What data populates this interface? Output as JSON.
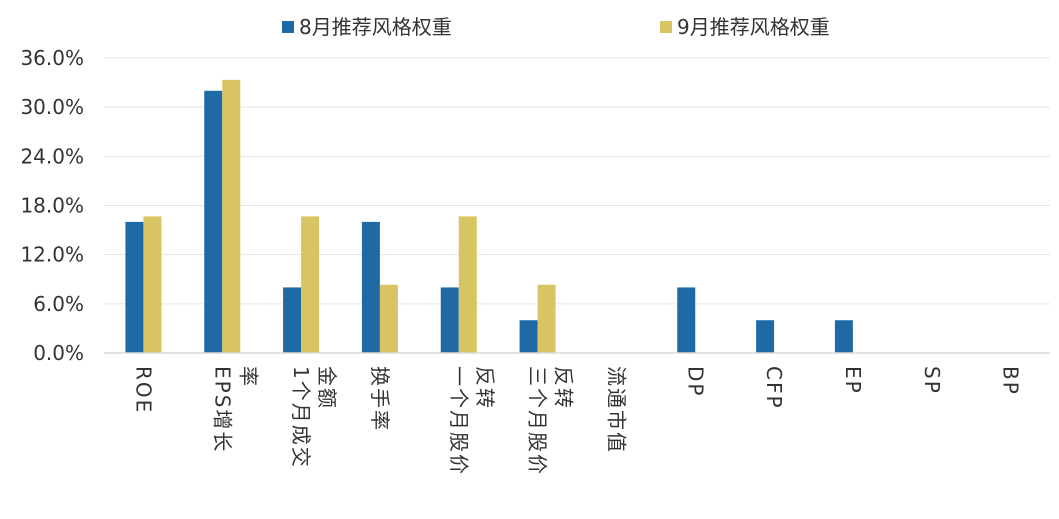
{
  "chart_data": {
    "type": "bar",
    "categories": [
      "ROE",
      "EPS增长率",
      "1个月成交金额",
      "换手率",
      "一个月股价反转",
      "三个月股价反转",
      "流通市值",
      "DP",
      "CFP",
      "EP",
      "SP",
      "BP"
    ],
    "series": [
      {
        "name": "8月推荐风格权重",
        "values": [
          0.16,
          0.32,
          0.08,
          0.16,
          0.08,
          0.04,
          0.0,
          0.08,
          0.04,
          0.04,
          0.0,
          0.0
        ]
      },
      {
        "name": "9月推荐风格权重",
        "values": [
          0.1667,
          0.3333,
          0.1667,
          0.0833,
          0.1667,
          0.0833,
          0.0,
          0.0,
          0.0,
          0.0,
          0.0,
          0.0
        ]
      }
    ],
    "ylim": [
      0,
      0.36
    ],
    "yticks": [
      0,
      0.06,
      0.12,
      0.18,
      0.24,
      0.3,
      0.36
    ],
    "ytick_labels": [
      "0.0%",
      "6.0%",
      "12.0%",
      "18.0%",
      "24.0%",
      "30.0%",
      "36.0%"
    ],
    "legend_position": "top",
    "grid": true,
    "colors": [
      "#1f6aa5",
      "#d9c463"
    ]
  }
}
